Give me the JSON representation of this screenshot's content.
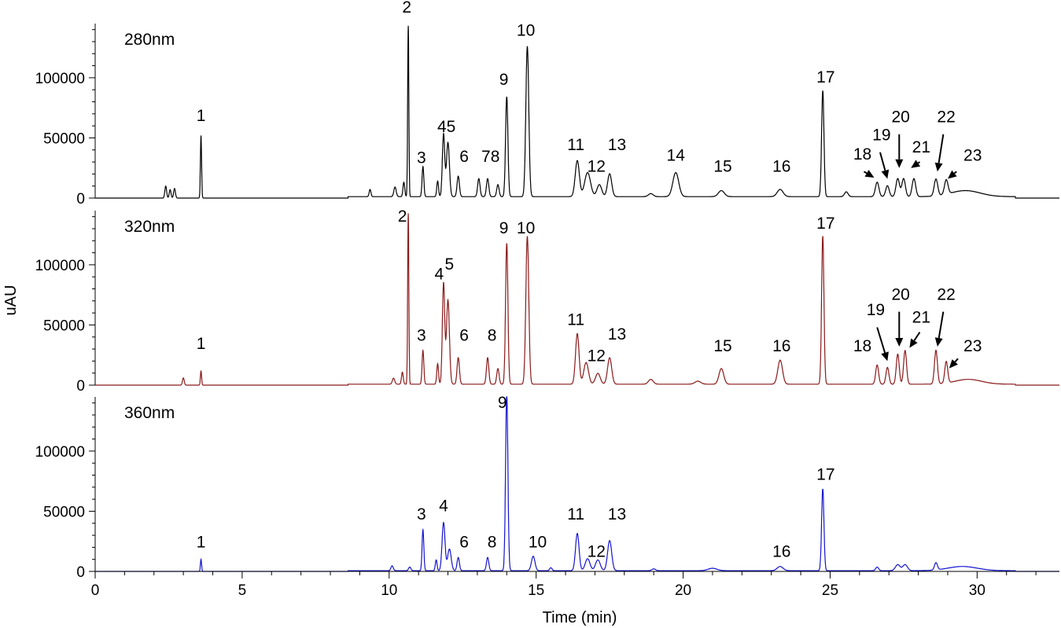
{
  "chart_data": {
    "type": "line",
    "x_axis": {
      "label": "Time (min)",
      "range": [
        0,
        32.8
      ],
      "ticks": [
        0,
        5,
        10,
        15,
        20,
        25,
        30
      ],
      "tick_labels": [
        "0",
        "5",
        "10",
        "15",
        "20",
        "25",
        "30"
      ]
    },
    "y_axis": {
      "label": "uAU",
      "range": [
        0,
        145000
      ],
      "ticks": [
        0,
        50000,
        100000
      ],
      "tick_labels": [
        "0",
        "50000",
        "100000"
      ]
    },
    "grid": false,
    "legend": "none",
    "panels": [
      {
        "label": "280nm",
        "color": "#000000",
        "baseline": 1200,
        "peaks": [
          {
            "t": 2.4,
            "h": 10000,
            "w": 0.03
          },
          {
            "t": 2.55,
            "h": 7000,
            "w": 0.03
          },
          {
            "t": 2.7,
            "h": 8000,
            "w": 0.03
          },
          {
            "t": 3.6,
            "h": 52000,
            "w": 0.02
          },
          {
            "t": 9.35,
            "h": 6000,
            "w": 0.03
          },
          {
            "t": 10.2,
            "h": 8000,
            "w": 0.04
          },
          {
            "t": 10.5,
            "h": 12000,
            "w": 0.03
          },
          {
            "t": 10.65,
            "h": 142000,
            "w": 0.02
          },
          {
            "t": 11.15,
            "h": 25000,
            "w": 0.03
          },
          {
            "t": 11.65,
            "h": 13000,
            "w": 0.03
          },
          {
            "t": 11.85,
            "h": 52000,
            "w": 0.04
          },
          {
            "t": 12.0,
            "h": 45000,
            "w": 0.05
          },
          {
            "t": 12.35,
            "h": 17000,
            "w": 0.04
          },
          {
            "t": 13.05,
            "h": 15000,
            "w": 0.04
          },
          {
            "t": 13.35,
            "h": 15000,
            "w": 0.04
          },
          {
            "t": 13.7,
            "h": 10000,
            "w": 0.04
          },
          {
            "t": 14.0,
            "h": 83000,
            "w": 0.04
          },
          {
            "t": 14.7,
            "h": 125000,
            "w": 0.05
          },
          {
            "t": 16.4,
            "h": 30000,
            "w": 0.07
          },
          {
            "t": 16.75,
            "h": 20000,
            "w": 0.1
          },
          {
            "t": 17.15,
            "h": 10000,
            "w": 0.08
          },
          {
            "t": 17.5,
            "h": 19000,
            "w": 0.07
          },
          {
            "t": 18.9,
            "h": 2500,
            "w": 0.08
          },
          {
            "t": 19.75,
            "h": 20000,
            "w": 0.1
          },
          {
            "t": 21.3,
            "h": 5000,
            "w": 0.1
          },
          {
            "t": 23.3,
            "h": 6000,
            "w": 0.1
          },
          {
            "t": 24.75,
            "h": 88000,
            "w": 0.04
          },
          {
            "t": 25.55,
            "h": 4000,
            "w": 0.06
          },
          {
            "t": 26.6,
            "h": 12000,
            "w": 0.06
          },
          {
            "t": 26.95,
            "h": 9000,
            "w": 0.06
          },
          {
            "t": 27.3,
            "h": 15000,
            "w": 0.06
          },
          {
            "t": 27.5,
            "h": 15000,
            "w": 0.06
          },
          {
            "t": 27.85,
            "h": 15000,
            "w": 0.06
          },
          {
            "t": 28.6,
            "h": 14000,
            "w": 0.06
          },
          {
            "t": 28.95,
            "h": 12000,
            "w": 0.06
          },
          {
            "t": 29.6,
            "h": 5000,
            "w": 0.5
          }
        ],
        "labels": [
          {
            "text": "1",
            "t": 3.6,
            "y": 64000
          },
          {
            "text": "2",
            "t": 10.6,
            "y": 154000
          },
          {
            "text": "3",
            "t": 11.1,
            "y": 29000
          },
          {
            "text": "45",
            "t": 11.95,
            "y": 55000
          },
          {
            "text": "6",
            "t": 12.55,
            "y": 30000
          },
          {
            "text": "78",
            "t": 13.45,
            "y": 30000
          },
          {
            "text": "9",
            "t": 13.9,
            "y": 94000
          },
          {
            "text": "10",
            "t": 14.65,
            "y": 135000
          },
          {
            "text": "11",
            "t": 16.35,
            "y": 40000
          },
          {
            "text": "12",
            "t": 17.05,
            "y": 22000
          },
          {
            "text": "13",
            "t": 17.75,
            "y": 40000
          },
          {
            "text": "14",
            "t": 19.75,
            "y": 31000
          },
          {
            "text": "15",
            "t": 21.35,
            "y": 22000
          },
          {
            "text": "16",
            "t": 23.35,
            "y": 22000
          },
          {
            "text": "17",
            "t": 24.85,
            "y": 96000
          },
          {
            "text": "18",
            "t": 26.1,
            "y": 32000
          },
          {
            "text": "19",
            "t": 26.75,
            "y": 48000
          },
          {
            "text": "20",
            "t": 27.4,
            "y": 63000
          },
          {
            "text": "21",
            "t": 28.1,
            "y": 38000
          },
          {
            "text": "22",
            "t": 28.95,
            "y": 63000
          },
          {
            "text": "23",
            "t": 29.85,
            "y": 31000
          }
        ],
        "arrows": [
          {
            "from": [
              26.15,
              22000
            ],
            "to": [
              26.5,
              17000
            ]
          },
          {
            "from": [
              26.7,
              38000
            ],
            "to": [
              26.95,
              16000
            ]
          },
          {
            "from": [
              27.35,
              53000
            ],
            "to": [
              27.35,
              25000
            ]
          },
          {
            "from": [
              28.05,
              30000
            ],
            "to": [
              27.75,
              25000
            ]
          },
          {
            "from": [
              28.85,
              53000
            ],
            "to": [
              28.65,
              22000
            ]
          },
          {
            "from": [
              29.3,
              22000
            ],
            "to": [
              29.0,
              16000
            ]
          }
        ]
      },
      {
        "label": "320nm",
        "color": "#8b1a1a",
        "baseline": 800,
        "peaks": [
          {
            "t": 3.0,
            "h": 6000,
            "w": 0.03
          },
          {
            "t": 3.6,
            "h": 12000,
            "w": 0.02
          },
          {
            "t": 10.15,
            "h": 5000,
            "w": 0.04
          },
          {
            "t": 10.45,
            "h": 10000,
            "w": 0.03
          },
          {
            "t": 10.65,
            "h": 142000,
            "w": 0.02
          },
          {
            "t": 11.15,
            "h": 28000,
            "w": 0.03
          },
          {
            "t": 11.65,
            "h": 17000,
            "w": 0.03
          },
          {
            "t": 11.85,
            "h": 84000,
            "w": 0.04
          },
          {
            "t": 12.0,
            "h": 70000,
            "w": 0.05
          },
          {
            "t": 12.35,
            "h": 22000,
            "w": 0.04
          },
          {
            "t": 13.35,
            "h": 22000,
            "w": 0.04
          },
          {
            "t": 13.7,
            "h": 13000,
            "w": 0.04
          },
          {
            "t": 14.0,
            "h": 117000,
            "w": 0.04
          },
          {
            "t": 14.7,
            "h": 123000,
            "w": 0.05
          },
          {
            "t": 16.4,
            "h": 42000,
            "w": 0.06
          },
          {
            "t": 16.7,
            "h": 18000,
            "w": 0.08
          },
          {
            "t": 17.1,
            "h": 9000,
            "w": 0.08
          },
          {
            "t": 17.5,
            "h": 22000,
            "w": 0.07
          },
          {
            "t": 18.9,
            "h": 4000,
            "w": 0.08
          },
          {
            "t": 20.5,
            "h": 2500,
            "w": 0.1
          },
          {
            "t": 21.3,
            "h": 13000,
            "w": 0.08
          },
          {
            "t": 23.3,
            "h": 20000,
            "w": 0.08
          },
          {
            "t": 24.75,
            "h": 123000,
            "w": 0.04
          },
          {
            "t": 26.6,
            "h": 16000,
            "w": 0.05
          },
          {
            "t": 26.95,
            "h": 14000,
            "w": 0.05
          },
          {
            "t": 27.3,
            "h": 25000,
            "w": 0.05
          },
          {
            "t": 27.55,
            "h": 28000,
            "w": 0.05
          },
          {
            "t": 28.6,
            "h": 28000,
            "w": 0.05
          },
          {
            "t": 28.95,
            "h": 18000,
            "w": 0.05
          },
          {
            "t": 29.7,
            "h": 4000,
            "w": 0.45
          }
        ],
        "labels": [
          {
            "text": "1",
            "t": 3.6,
            "y": 30000
          },
          {
            "text": "2",
            "t": 10.45,
            "y": 136000
          },
          {
            "text": "3",
            "t": 11.1,
            "y": 37000
          },
          {
            "text": "4",
            "t": 11.7,
            "y": 88000
          },
          {
            "text": "5",
            "t": 12.05,
            "y": 96000
          },
          {
            "text": "6",
            "t": 12.55,
            "y": 37000
          },
          {
            "text": "8",
            "t": 13.5,
            "y": 37000
          },
          {
            "text": "9",
            "t": 13.9,
            "y": 126000
          },
          {
            "text": "10",
            "t": 14.65,
            "y": 126000
          },
          {
            "text": "11",
            "t": 16.35,
            "y": 50000
          },
          {
            "text": "12",
            "t": 17.05,
            "y": 20000
          },
          {
            "text": "13",
            "t": 17.75,
            "y": 38000
          },
          {
            "text": "15",
            "t": 21.35,
            "y": 28000
          },
          {
            "text": "16",
            "t": 23.35,
            "y": 28000
          },
          {
            "text": "17",
            "t": 24.85,
            "y": 130000
          },
          {
            "text": "18",
            "t": 26.1,
            "y": 28000
          },
          {
            "text": "19",
            "t": 26.55,
            "y": 58000
          },
          {
            "text": "20",
            "t": 27.4,
            "y": 71000
          },
          {
            "text": "21",
            "t": 28.1,
            "y": 52000
          },
          {
            "text": "22",
            "t": 28.95,
            "y": 71000
          },
          {
            "text": "23",
            "t": 29.85,
            "y": 28000
          }
        ],
        "arrows": [
          {
            "from": [
              26.6,
              48000
            ],
            "to": [
              26.95,
              20000
            ]
          },
          {
            "from": [
              27.35,
              61000
            ],
            "to": [
              27.35,
              32000
            ]
          },
          {
            "from": [
              28.05,
              44000
            ],
            "to": [
              27.7,
              31000
            ]
          },
          {
            "from": [
              28.85,
              61000
            ],
            "to": [
              28.65,
              32000
            ]
          },
          {
            "from": [
              29.35,
              22000
            ],
            "to": [
              29.05,
              14000
            ]
          }
        ]
      },
      {
        "label": "360nm",
        "color": "#1515d0",
        "baseline": 600,
        "peaks": [
          {
            "t": 3.6,
            "h": 10000,
            "w": 0.02
          },
          {
            "t": 10.1,
            "h": 4000,
            "w": 0.04
          },
          {
            "t": 10.7,
            "h": 3000,
            "w": 0.04
          },
          {
            "t": 11.15,
            "h": 34000,
            "w": 0.03
          },
          {
            "t": 11.6,
            "h": 9000,
            "w": 0.03
          },
          {
            "t": 11.85,
            "h": 40000,
            "w": 0.05
          },
          {
            "t": 12.05,
            "h": 18000,
            "w": 0.06
          },
          {
            "t": 12.35,
            "h": 11000,
            "w": 0.04
          },
          {
            "t": 13.35,
            "h": 11000,
            "w": 0.04
          },
          {
            "t": 14.0,
            "h": 146000,
            "w": 0.04
          },
          {
            "t": 14.9,
            "h": 12000,
            "w": 0.06
          },
          {
            "t": 15.5,
            "h": 2500,
            "w": 0.04
          },
          {
            "t": 16.4,
            "h": 31000,
            "w": 0.06
          },
          {
            "t": 16.75,
            "h": 10000,
            "w": 0.08
          },
          {
            "t": 17.1,
            "h": 9000,
            "w": 0.08
          },
          {
            "t": 17.5,
            "h": 25000,
            "w": 0.07
          },
          {
            "t": 19.0,
            "h": 1500,
            "w": 0.06
          },
          {
            "t": 21.0,
            "h": 2000,
            "w": 0.15
          },
          {
            "t": 23.3,
            "h": 3500,
            "w": 0.1
          },
          {
            "t": 24.75,
            "h": 68000,
            "w": 0.04
          },
          {
            "t": 26.6,
            "h": 3000,
            "w": 0.05
          },
          {
            "t": 27.3,
            "h": 5000,
            "w": 0.08
          },
          {
            "t": 27.55,
            "h": 5000,
            "w": 0.08
          },
          {
            "t": 28.6,
            "h": 6000,
            "w": 0.05
          },
          {
            "t": 29.5,
            "h": 3500,
            "w": 0.5
          }
        ],
        "labels": [
          {
            "text": "1",
            "t": 3.6,
            "y": 20000
          },
          {
            "text": "3",
            "t": 11.1,
            "y": 43000
          },
          {
            "text": "4",
            "t": 11.85,
            "y": 50000
          },
          {
            "text": "6",
            "t": 12.55,
            "y": 20000
          },
          {
            "text": "8",
            "t": 13.5,
            "y": 20000
          },
          {
            "text": "9",
            "t": 13.85,
            "y": 136000
          },
          {
            "text": "10",
            "t": 15.05,
            "y": 20000
          },
          {
            "text": "11",
            "t": 16.35,
            "y": 43000
          },
          {
            "text": "12",
            "t": 17.05,
            "y": 12000
          },
          {
            "text": "13",
            "t": 17.75,
            "y": 43000
          },
          {
            "text": "16",
            "t": 23.35,
            "y": 12000
          },
          {
            "text": "17",
            "t": 24.85,
            "y": 76000
          }
        ],
        "arrows": []
      }
    ]
  }
}
